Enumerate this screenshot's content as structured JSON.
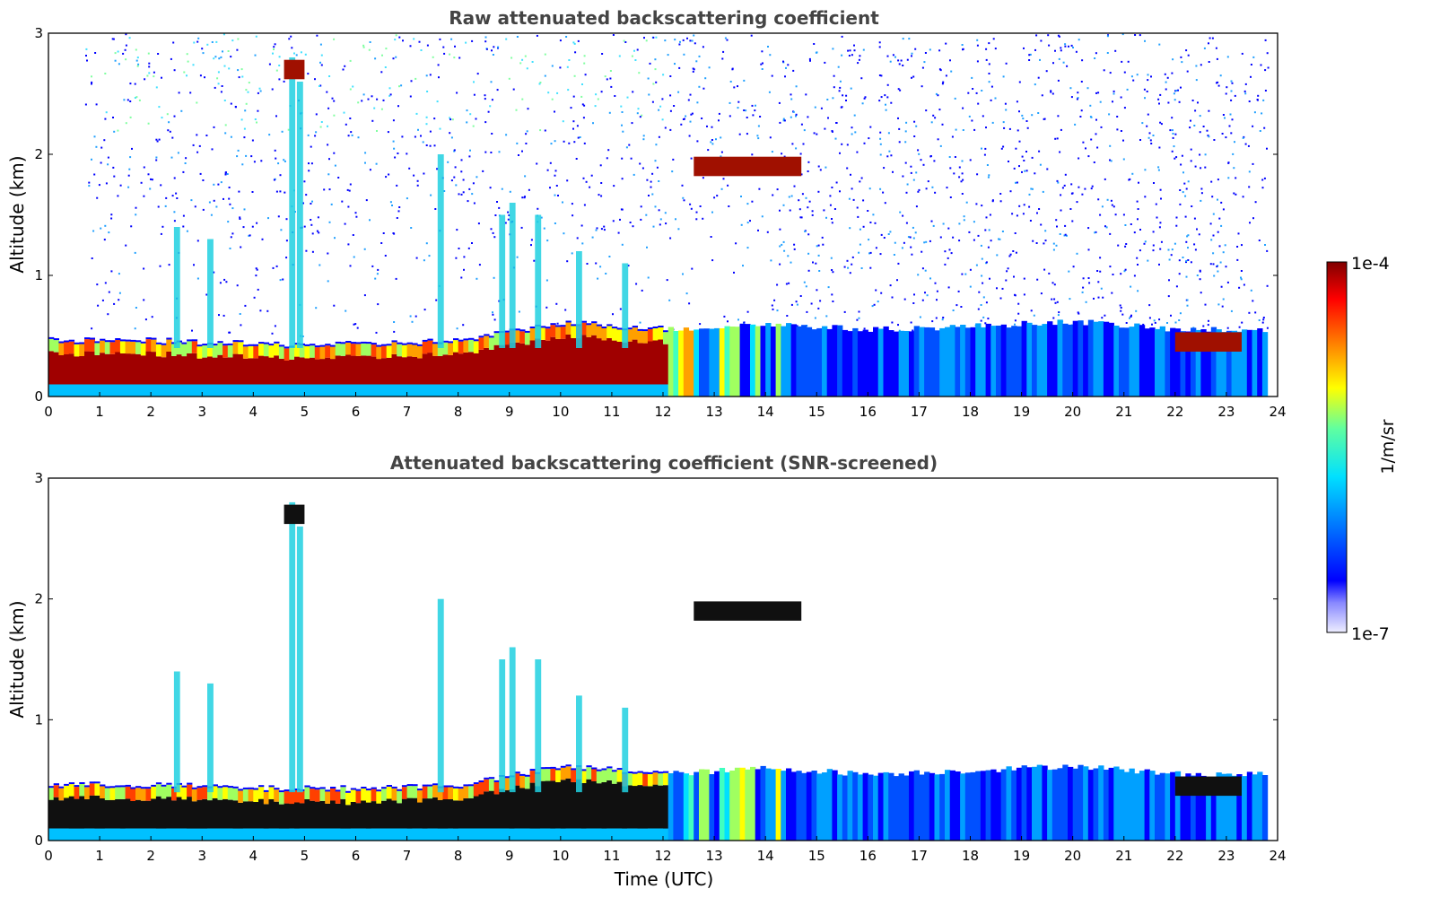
{
  "chart_data": [
    {
      "type": "heatmap",
      "title": "Raw attenuated backscattering coefficient",
      "xlabel": "",
      "ylabel": "Altitude (km)",
      "xlim": [
        0,
        24
      ],
      "ylim": [
        0,
        3
      ],
      "xticks": [
        "0",
        "1",
        "2",
        "3",
        "4",
        "5",
        "6",
        "7",
        "8",
        "9",
        "10",
        "11",
        "12",
        "13",
        "14",
        "15",
        "16",
        "17",
        "18",
        "19",
        "20",
        "21",
        "22",
        "23",
        "24"
      ],
      "yticks": [
        "0",
        "1",
        "2",
        "3"
      ],
      "boundary_layer_top_km": [
        {
          "time": 0,
          "top": 0.45
        },
        {
          "time": 2,
          "top": 0.45
        },
        {
          "time": 4,
          "top": 0.42
        },
        {
          "time": 6,
          "top": 0.42
        },
        {
          "time": 8,
          "top": 0.45
        },
        {
          "time": 10,
          "top": 0.6
        },
        {
          "time": 12,
          "top": 0.55
        },
        {
          "time": 14,
          "top": 0.6
        },
        {
          "time": 16,
          "top": 0.55
        },
        {
          "time": 18,
          "top": 0.58
        },
        {
          "time": 20,
          "top": 0.62
        },
        {
          "time": 22,
          "top": 0.55
        },
        {
          "time": 23.8,
          "top": 0.55
        }
      ],
      "cloud_layers": [
        {
          "t_start": 12.6,
          "t_end": 14.7,
          "alt_km": 1.9
        },
        {
          "t_start": 22.0,
          "t_end": 23.3,
          "alt_km": 0.45
        },
        {
          "t_start": 4.6,
          "t_end": 5.0,
          "alt_km": 2.7
        }
      ],
      "data_end_time": 23.8
    },
    {
      "type": "heatmap",
      "title": "Attenuated backscattering coefficient (SNR-screened)",
      "xlabel": "Time (UTC)",
      "ylabel": "Altitude (km)",
      "xlim": [
        0,
        24
      ],
      "ylim": [
        0,
        3
      ],
      "xticks": [
        "0",
        "1",
        "2",
        "3",
        "4",
        "5",
        "6",
        "7",
        "8",
        "9",
        "10",
        "11",
        "12",
        "13",
        "14",
        "15",
        "16",
        "17",
        "18",
        "19",
        "20",
        "21",
        "22",
        "23",
        "24"
      ],
      "yticks": [
        "0",
        "1",
        "2",
        "3"
      ],
      "data_end_time": 23.8
    }
  ],
  "colorbar": {
    "label": "1/m/sr",
    "max_label": "1e-4",
    "min_label": "1e-7",
    "scale": "log",
    "colormap": "jet",
    "colors": [
      "#eeeeff",
      "#0000ff",
      "#00a0ff",
      "#00ffd0",
      "#a0ff40",
      "#ffe000",
      "#ff6000",
      "#d00000",
      "#800000"
    ]
  }
}
